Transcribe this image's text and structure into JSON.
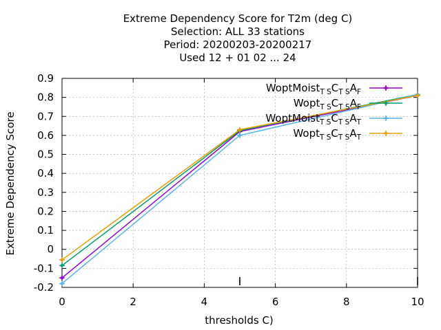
{
  "chart_data": {
    "type": "line",
    "title_lines": [
      "Extreme Dependency Score  for T2m (deg C)",
      "Selection: ALL     33 stations",
      "Period: 20200203-20200217",
      "Used  12 + 01 02 ... 24"
    ],
    "xlabel": "thresholds C)",
    "ylabel": "Extreme Dependency Score",
    "xlim": [
      0,
      10
    ],
    "ylim": [
      -0.2,
      0.9
    ],
    "xticks": [
      0,
      2,
      4,
      6,
      8,
      10
    ],
    "yticks": [
      -0.2,
      -0.1,
      0,
      0.1,
      0.2,
      0.3,
      0.4,
      0.5,
      0.6,
      0.7,
      0.8,
      0.9
    ],
    "grid": true,
    "legend_position": "top-right",
    "series": [
      {
        "name": {
          "base": "WoptMoist",
          "parts": [
            [
              "sub",
              "T S"
            ],
            [
              "",
              "C"
            ],
            [
              "sub",
              "T S"
            ],
            [
              "",
              "A"
            ],
            [
              "sub",
              "F"
            ]
          ]
        },
        "color": "#9400d3",
        "x": [
          0,
          5,
          10
        ],
        "y": [
          -0.15,
          0.62,
          0.81
        ]
      },
      {
        "name": {
          "base": "Wopt",
          "parts": [
            [
              "sub",
              "T S"
            ],
            [
              "",
              "C"
            ],
            [
              "sub",
              "T S"
            ],
            [
              "",
              "A"
            ],
            [
              "sub",
              "F"
            ]
          ]
        },
        "color": "#009e73",
        "x": [
          0,
          5,
          10
        ],
        "y": [
          -0.085,
          0.625,
          0.815
        ]
      },
      {
        "name": {
          "base": "WoptMoist",
          "parts": [
            [
              "sub",
              "T S"
            ],
            [
              "",
              "C"
            ],
            [
              "sub",
              "T S"
            ],
            [
              "",
              "A"
            ],
            [
              "sub",
              "T"
            ]
          ]
        },
        "color": "#56b4e9",
        "x": [
          0,
          5,
          10
        ],
        "y": [
          -0.18,
          0.6,
          0.815
        ]
      },
      {
        "name": {
          "base": "Wopt",
          "parts": [
            [
              "sub",
              "T S"
            ],
            [
              "",
              "C"
            ],
            [
              "sub",
              "T S"
            ],
            [
              "",
              "A"
            ],
            [
              "sub",
              "T"
            ]
          ]
        },
        "color": "#e69f00",
        "x": [
          0,
          5,
          10
        ],
        "y": [
          -0.055,
          0.63,
          0.81
        ]
      }
    ],
    "marker_ticks_x": [
      5,
      10
    ]
  }
}
